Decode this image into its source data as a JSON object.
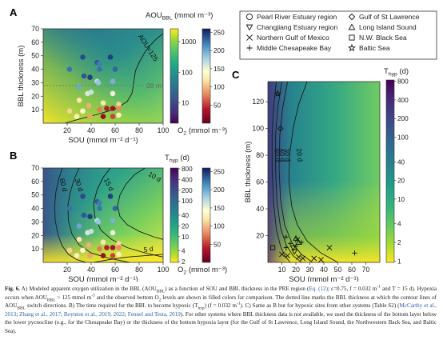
{
  "caption": {
    "label": "Fig. 6.",
    "parts": [
      {
        "t": " A) Modeled apparent oxygen utilization in the BBL (AOU"
      },
      {
        "t": "BBL",
        "sub": true
      },
      {
        "t": ") as a function of SOU and BBL thickness in the PRE region ("
      },
      {
        "t": "Eq. (12)",
        "link": true
      },
      {
        "t": "; ε=0.75, f = 0.032 m"
      },
      {
        "t": "-1",
        "sup": true
      },
      {
        "t": " and T = 15 d). Hypoxia occurs when AOU"
      },
      {
        "t": "BBL",
        "sub": true
      },
      {
        "t": " > 125 mmol m"
      },
      {
        "t": "-3",
        "sup": true
      },
      {
        "t": " and the observed bottom O"
      },
      {
        "t": "2",
        "sub": true
      },
      {
        "t": " levels are shown in filled colors for comparison. The dotted line marks the BBL thickness at which the contour lines of AOU"
      },
      {
        "t": "BBL",
        "sub": true
      },
      {
        "t": " switch directions. B) The time required for the BBL to become hypoxic (T"
      },
      {
        "t": "hyp",
        "sub": true
      },
      {
        "t": ") (f = 0.032 m"
      },
      {
        "t": "-1",
        "sup": true
      },
      {
        "t": "). C) Same as B but for hypoxic sites from other systems (Table S2) ("
      },
      {
        "t": "McCarthy et al., 2013",
        "link": true
      },
      {
        "t": "; "
      },
      {
        "t": "Zhang et al., 2017",
        "link": true
      },
      {
        "t": "; "
      },
      {
        "t": "Boynton et al., 2019, 2022",
        "link": true
      },
      {
        "t": "; "
      },
      {
        "t": "Fennel and Testa, 2019",
        "link": true
      },
      {
        "t": "). For other systems where BBL thickness data is not available, we used the thickness of the bottom layer below the lower pycnocline (e.g., for the Chesapeake Bay) or the thickness of the bottom hypoxia layer (for the Gulf of St Lawrence, Long Island Sound, the Northwestern Back Sea, and Baltic Sea)."
      }
    ]
  },
  "legend": {
    "items": [
      {
        "label": "Pearl River Estuary region",
        "icon": "circle-icon"
      },
      {
        "label": "Changjiang Estuary region",
        "icon": "triangle-down-icon"
      },
      {
        "label": "Northern Gulf of Mexico",
        "icon": "x-icon"
      },
      {
        "label": "Middle Chesapeake Bay",
        "icon": "plus-icon"
      },
      {
        "label": "Gulf of St Lawrence",
        "icon": "diamond-icon"
      },
      {
        "label": "Long Island Sound",
        "icon": "triangle-up-icon"
      },
      {
        "label": "N.W. Black Sea",
        "icon": "square-icon"
      },
      {
        "label": "Baltic Sea",
        "icon": "star-icon"
      }
    ]
  },
  "chart_data": [
    {
      "panel": "A",
      "type": "heatmap",
      "xlabel": "SOU (mmol m⁻² d⁻¹)",
      "ylabel": "BBL thickness (m)",
      "xlim": [
        0,
        100
      ],
      "ylim": [
        0,
        70
      ],
      "xticks": [
        20,
        40,
        60,
        80,
        100
      ],
      "yticks": [
        10,
        20,
        30,
        40,
        50,
        60,
        70
      ],
      "colorbar": {
        "title": "AOU",
        "title_sub": "BBL",
        "units": "(mmol m⁻³)",
        "scale": "log",
        "ticks": [
          10,
          100,
          1000
        ],
        "colormap": "viridis"
      },
      "o2_colorbar": {
        "label": "O",
        "label_sub": "2",
        "units": "(mmol m⁻³)",
        "ticks": [
          50,
          100,
          150,
          200,
          250
        ],
        "colormap": "red-yellow-blue"
      },
      "contours": [
        {
          "label": "AOU=125",
          "points": [
            [
              100,
              66.5
            ],
            [
              95,
              63
            ],
            [
              90,
              58.5
            ],
            [
              85,
              53
            ],
            [
              80,
              45
            ],
            [
              77,
              39
            ],
            [
              75.5,
              31
            ],
            [
              75,
              27
            ],
            [
              74,
              22
            ],
            [
              70,
              16
            ],
            [
              60,
              10.5
            ],
            [
              45,
              6.5
            ],
            [
              30,
              3
            ],
            [
              18,
              0
            ]
          ]
        }
      ],
      "hline": {
        "y": 28,
        "label": "28 m"
      },
      "points": [
        {
          "x": 33,
          "y": 49,
          "o2": 240
        },
        {
          "x": 45,
          "y": 45,
          "o2": 235
        },
        {
          "x": 47,
          "y": 44,
          "o2": 220
        },
        {
          "x": 56,
          "y": 49,
          "o2": 245
        },
        {
          "x": 22,
          "y": 40,
          "o2": 225
        },
        {
          "x": 47,
          "y": 40,
          "o2": 225
        },
        {
          "x": 60,
          "y": 40,
          "o2": 230
        },
        {
          "x": 34,
          "y": 35,
          "o2": 235
        },
        {
          "x": 39,
          "y": 34,
          "o2": 245
        },
        {
          "x": 45,
          "y": 31,
          "o2": 170
        },
        {
          "x": 46,
          "y": 30,
          "o2": 185
        },
        {
          "x": 58,
          "y": 31,
          "o2": 195
        },
        {
          "x": 30,
          "y": 27,
          "o2": 200
        },
        {
          "x": 37,
          "y": 22,
          "o2": 160
        },
        {
          "x": 40,
          "y": 23,
          "o2": 165
        },
        {
          "x": 58,
          "y": 22,
          "o2": 150
        },
        {
          "x": 30,
          "y": 17,
          "o2": 120
        },
        {
          "x": 38,
          "y": 13,
          "o2": 95
        },
        {
          "x": 50,
          "y": 15,
          "o2": 120
        },
        {
          "x": 63,
          "y": 14,
          "o2": 110
        },
        {
          "x": 22,
          "y": 9,
          "o2": 110
        },
        {
          "x": 33,
          "y": 9,
          "o2": 140
        },
        {
          "x": 47,
          "y": 10,
          "o2": 75
        },
        {
          "x": 53,
          "y": 11,
          "o2": 40
        },
        {
          "x": 58,
          "y": 11,
          "o2": 30
        },
        {
          "x": 63,
          "y": 11,
          "o2": 80
        },
        {
          "x": 28,
          "y": 5,
          "o2": 130
        },
        {
          "x": 39,
          "y": 5,
          "o2": 90
        },
        {
          "x": 50,
          "y": 5,
          "o2": 25
        },
        {
          "x": 58,
          "y": 5,
          "o2": 55
        },
        {
          "x": 63,
          "y": 6,
          "o2": 130
        }
      ]
    },
    {
      "panel": "B",
      "type": "heatmap",
      "xlabel": "SOU (mmol m⁻² d⁻¹)",
      "xlim": [
        0,
        100
      ],
      "ylim": [
        0,
        70
      ],
      "xticks": [
        20,
        40,
        60,
        80,
        100
      ],
      "yticks": [
        10,
        20,
        30,
        40,
        50,
        60,
        70
      ],
      "colorbar": {
        "title": "T",
        "title_sub": "hyp",
        "units": "(d)",
        "scale": "log",
        "ticks": [
          2,
          4,
          10,
          20,
          40,
          100,
          200,
          400,
          800
        ],
        "colormap": "viridis-reversed"
      },
      "o2_colorbar": {
        "label": "O",
        "label_sub": "2",
        "units": "(mmol m⁻³)",
        "ticks": [
          50,
          100,
          150,
          200,
          250
        ],
        "colormap": "red-yellow-blue"
      },
      "contours": [
        {
          "label": "60 d",
          "points": [
            [
              16,
              70
            ],
            [
              13,
              62
            ],
            [
              10.5,
              52
            ],
            [
              9.5,
              42
            ],
            [
              10,
              31
            ],
            [
              12.5,
              20
            ],
            [
              16,
              12
            ],
            [
              21,
              6
            ],
            [
              28,
              2
            ],
            [
              36,
              0
            ]
          ]
        },
        {
          "label": "30 d",
          "points": [
            [
              30,
              70
            ],
            [
              26,
              62
            ],
            [
              22.5,
              52
            ],
            [
              20.5,
              42
            ],
            [
              21,
              31
            ],
            [
              24,
              21
            ],
            [
              30,
              13
            ],
            [
              40,
              7
            ],
            [
              55,
              3
            ],
            [
              72,
              0
            ]
          ]
        },
        {
          "label": "15 d",
          "points": [
            [
              56,
              70
            ],
            [
              50,
              63
            ],
            [
              45,
              54
            ],
            [
              42,
              44
            ],
            [
              43,
              34
            ],
            [
              48,
              24
            ],
            [
              57,
              17
            ],
            [
              70,
              11
            ],
            [
              85,
              7
            ],
            [
              100,
              4
            ]
          ]
        },
        {
          "label": "10 d",
          "points": [
            [
              85,
              70
            ],
            [
              76,
              65
            ],
            [
              69,
              58
            ],
            [
              64,
              50
            ],
            [
              62,
              42
            ],
            [
              64,
              34
            ],
            [
              70,
              28
            ],
            [
              80,
              23
            ],
            [
              92,
              19
            ],
            [
              100,
              17
            ]
          ]
        },
        {
          "label": "5 d",
          "points": [
            [
              42,
              0
            ],
            [
              55,
              2
            ],
            [
              70,
              4
            ],
            [
              85,
              5
            ],
            [
              100,
              6
            ]
          ]
        }
      ],
      "points": [
        {
          "x": 33,
          "y": 49,
          "o2": 240
        },
        {
          "x": 45,
          "y": 45,
          "o2": 235
        },
        {
          "x": 47,
          "y": 44,
          "o2": 220
        },
        {
          "x": 56,
          "y": 49,
          "o2": 245
        },
        {
          "x": 22,
          "y": 40,
          "o2": 225
        },
        {
          "x": 47,
          "y": 40,
          "o2": 225
        },
        {
          "x": 60,
          "y": 40,
          "o2": 230
        },
        {
          "x": 34,
          "y": 35,
          "o2": 235
        },
        {
          "x": 39,
          "y": 34,
          "o2": 245
        },
        {
          "x": 45,
          "y": 31,
          "o2": 170
        },
        {
          "x": 46,
          "y": 30,
          "o2": 185
        },
        {
          "x": 58,
          "y": 31,
          "o2": 195
        },
        {
          "x": 30,
          "y": 27,
          "o2": 200
        },
        {
          "x": 37,
          "y": 22,
          "o2": 160
        },
        {
          "x": 40,
          "y": 23,
          "o2": 165
        },
        {
          "x": 58,
          "y": 22,
          "o2": 150
        },
        {
          "x": 30,
          "y": 17,
          "o2": 120
        },
        {
          "x": 38,
          "y": 13,
          "o2": 95
        },
        {
          "x": 50,
          "y": 15,
          "o2": 120
        },
        {
          "x": 63,
          "y": 14,
          "o2": 110
        },
        {
          "x": 22,
          "y": 9,
          "o2": 110
        },
        {
          "x": 33,
          "y": 9,
          "o2": 140
        },
        {
          "x": 47,
          "y": 10,
          "o2": 75
        },
        {
          "x": 53,
          "y": 11,
          "o2": 40
        },
        {
          "x": 58,
          "y": 11,
          "o2": 30
        },
        {
          "x": 63,
          "y": 11,
          "o2": 80
        },
        {
          "x": 28,
          "y": 5,
          "o2": 130
        },
        {
          "x": 39,
          "y": 5,
          "o2": 90
        },
        {
          "x": 50,
          "y": 5,
          "o2": 25
        },
        {
          "x": 58,
          "y": 5,
          "o2": 55
        },
        {
          "x": 63,
          "y": 6,
          "o2": 130
        }
      ]
    },
    {
      "panel": "C",
      "type": "heatmap",
      "xlabel": "SOU (mmol m⁻² d⁻¹)",
      "ylabel": "BBL thickness (m)",
      "xlim": [
        0,
        80
      ],
      "ylim": [
        0,
        135
      ],
      "xticks": [
        10,
        20,
        30,
        40,
        50,
        60,
        70
      ],
      "yticks": [
        20,
        40,
        60,
        80,
        100,
        120
      ],
      "colorbar": {
        "title": "T",
        "title_sub": "hyp",
        "units": "(d)",
        "scale": "log",
        "ticks": [
          1,
          2,
          4,
          10,
          20,
          40,
          100,
          200,
          400,
          800
        ],
        "colormap": "viridis-reversed"
      },
      "contours": [
        {
          "label": "60 d",
          "points": [
            [
              6,
              135
            ],
            [
              4,
              115
            ],
            [
              3,
              95
            ],
            [
              3,
              70
            ],
            [
              4,
              45
            ],
            [
              6,
              25
            ],
            [
              9,
              12
            ],
            [
              12,
              5
            ],
            [
              16,
              0
            ]
          ]
        },
        {
          "label": "40 d",
          "points": [
            [
              10,
              135
            ],
            [
              7,
              115
            ],
            [
              5.5,
              95
            ],
            [
              5.5,
              70
            ],
            [
              6.5,
              45
            ],
            [
              9,
              26
            ],
            [
              13,
              13
            ],
            [
              18,
              5
            ],
            [
              24,
              0
            ]
          ]
        },
        {
          "label": "30 d",
          "points": [
            [
              14,
              135
            ],
            [
              10.5,
              115
            ],
            [
              8.5,
              95
            ],
            [
              8,
              70
            ],
            [
              9,
              47
            ],
            [
              12,
              28
            ],
            [
              17,
              15
            ],
            [
              24,
              6
            ],
            [
              32,
              0
            ]
          ]
        },
        {
          "label": "20 d",
          "points": [
            [
              28,
              135
            ],
            [
              22,
              118
            ],
            [
              18,
              100
            ],
            [
              15.5,
              80
            ],
            [
              15,
              60
            ],
            [
              17,
              42
            ],
            [
              21,
              28
            ],
            [
              28,
              16
            ],
            [
              38,
              7
            ],
            [
              50,
              0
            ]
          ]
        }
      ],
      "points": [
        {
          "x": 7,
          "y": 126,
          "system": "Baltic Sea"
        },
        {
          "x": 9,
          "y": 100,
          "system": "Gulf of St Lawrence"
        },
        {
          "x": 3.5,
          "y": 11,
          "system": "N.W. Black Sea"
        },
        {
          "x": 13,
          "y": 19,
          "system": "Middle Chesapeake Bay"
        },
        {
          "x": 16,
          "y": 14,
          "system": "Middle Chesapeake Bay"
        },
        {
          "x": 20,
          "y": 12,
          "system": "Middle Chesapeake Bay"
        },
        {
          "x": 24,
          "y": 15,
          "system": "Middle Chesapeake Bay"
        },
        {
          "x": 13,
          "y": 11,
          "system": "Middle Chesapeake Bay"
        },
        {
          "x": 62,
          "y": 7,
          "system": "Middle Chesapeake Bay"
        },
        {
          "x": 20,
          "y": 18,
          "system": "Long Island Sound"
        },
        {
          "x": 22,
          "y": 15,
          "system": "Long Island Sound"
        },
        {
          "x": 18,
          "y": 11,
          "system": "Changjiang Estuary region"
        },
        {
          "x": 19,
          "y": 8,
          "system": "Changjiang Estuary region"
        },
        {
          "x": 21,
          "y": 17,
          "system": "Northern Gulf of Mexico"
        },
        {
          "x": 14,
          "y": 5,
          "system": "Northern Gulf of Mexico"
        },
        {
          "x": 22,
          "y": 4,
          "system": "Northern Gulf of Mexico"
        },
        {
          "x": 25,
          "y": 3,
          "system": "Northern Gulf of Mexico"
        },
        {
          "x": 33,
          "y": 3,
          "system": "Northern Gulf of Mexico"
        },
        {
          "x": 38,
          "y": 2,
          "system": "Northern Gulf of Mexico"
        },
        {
          "x": 44,
          "y": 11,
          "system": "Northern Gulf of Mexico"
        },
        {
          "x": 10,
          "y": 6,
          "system": "Northern Gulf of Mexico"
        }
      ]
    }
  ]
}
